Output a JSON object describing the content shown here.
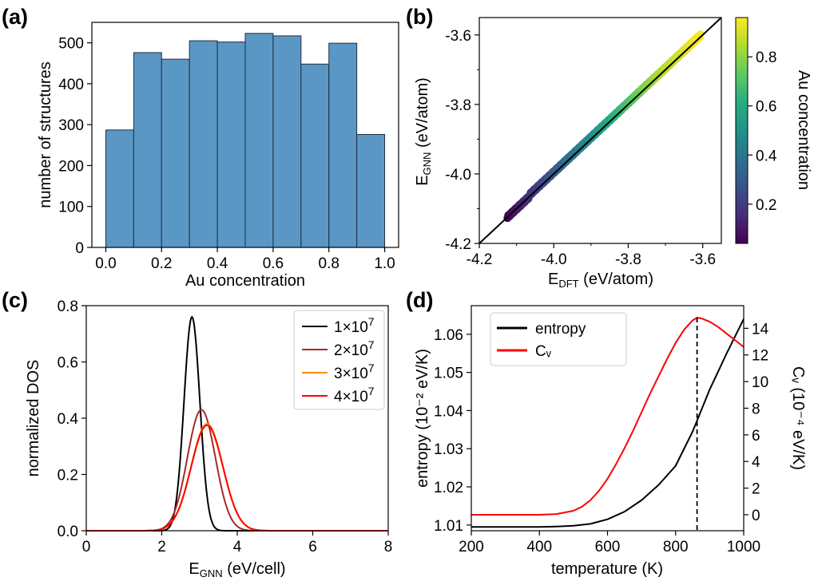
{
  "panels": {
    "a": "(a)",
    "b": "(b)",
    "c": "(c)",
    "d": "(d)"
  },
  "colors": {
    "bar_fill": "#5b97c4",
    "bar_edge": "#1f2f3f",
    "cv_line": "#ff0000",
    "entropy_line": "#000000",
    "dos_1e7": "#000000",
    "dos_2e7": "#a52a2a",
    "dos_3e7": "#ff8c00",
    "dos_4e7": "#ff0000"
  },
  "chart_data": [
    {
      "id": "a",
      "type": "bar",
      "title": "",
      "xlabel": "Au concentration",
      "ylabel": "number of structures",
      "bin_edges": [
        0.0,
        0.1,
        0.2,
        0.3,
        0.4,
        0.5,
        0.6,
        0.7,
        0.8,
        0.9,
        1.0
      ],
      "values": [
        287,
        476,
        460,
        505,
        502,
        523,
        517,
        448,
        499,
        276
      ],
      "xlim": [
        -0.05,
        1.05
      ],
      "ylim": [
        0,
        550
      ],
      "xticks": [
        0.0,
        0.2,
        0.4,
        0.6,
        0.8,
        1.0
      ],
      "xtick_labels": [
        "0.0",
        "0.2",
        "0.4",
        "0.6",
        "0.8",
        "1.0"
      ],
      "yticks": [
        0,
        100,
        200,
        300,
        400,
        500
      ],
      "ytick_labels": [
        "0",
        "100",
        "200",
        "300",
        "400",
        "500"
      ]
    },
    {
      "id": "b",
      "type": "scatter",
      "title": "",
      "xlabel_main": "E",
      "xlabel_sub": "DFT",
      "xlabel_rest": " (eV/atom)",
      "ylabel_main": "E",
      "ylabel_sub": "GNN",
      "ylabel_rest": " (eV/atom)",
      "xlim": [
        -4.2,
        -3.55
      ],
      "ylim": [
        -4.2,
        -3.55
      ],
      "xticks": [
        -4.2,
        -4.0,
        -3.8,
        -3.6
      ],
      "xtick_labels": [
        "-4.2",
        "-4.0",
        "-3.8",
        "-3.6"
      ],
      "yticks": [
        -4.2,
        -4.0,
        -3.8,
        -3.6
      ],
      "ytick_labels": [
        "-4.2",
        "-4.0",
        "-3.8",
        "-3.6"
      ],
      "points_x": [
        -4.12,
        -4.11,
        -4.1,
        -4.09,
        -4.08,
        -4.07,
        -4.06,
        -4.05,
        -4.04,
        -4.03,
        -4.02,
        -4.01,
        -4.0,
        -3.99,
        -3.98,
        -3.97,
        -3.96,
        -3.95,
        -3.94,
        -3.93,
        -3.92,
        -3.91,
        -3.9,
        -3.89,
        -3.88,
        -3.87,
        -3.86,
        -3.85,
        -3.84,
        -3.83,
        -3.82,
        -3.81,
        -3.8,
        -3.79,
        -3.78,
        -3.77,
        -3.76,
        -3.75,
        -3.74,
        -3.73,
        -3.72,
        -3.71,
        -3.7,
        -3.69,
        -3.68,
        -3.67,
        -3.66,
        -3.65,
        -3.64,
        -3.63,
        -3.62,
        -3.61
      ],
      "points_y": [
        -4.12,
        -4.11,
        -4.1,
        -4.09,
        -4.08,
        -4.07,
        -4.055,
        -4.045,
        -4.035,
        -4.025,
        -4.015,
        -4.005,
        -3.995,
        -3.985,
        -3.975,
        -3.965,
        -3.955,
        -3.945,
        -3.935,
        -3.925,
        -3.915,
        -3.905,
        -3.895,
        -3.885,
        -3.875,
        -3.865,
        -3.855,
        -3.845,
        -3.835,
        -3.825,
        -3.815,
        -3.805,
        -3.795,
        -3.785,
        -3.775,
        -3.765,
        -3.755,
        -3.745,
        -3.735,
        -3.725,
        -3.715,
        -3.705,
        -3.695,
        -3.685,
        -3.675,
        -3.665,
        -3.655,
        -3.645,
        -3.635,
        -3.625,
        -3.615,
        -3.605
      ],
      "points_c": [
        0.05,
        0.07,
        0.09,
        0.11,
        0.13,
        0.15,
        0.17,
        0.19,
        0.21,
        0.23,
        0.25,
        0.27,
        0.29,
        0.31,
        0.33,
        0.35,
        0.37,
        0.39,
        0.41,
        0.43,
        0.45,
        0.47,
        0.49,
        0.51,
        0.53,
        0.55,
        0.57,
        0.59,
        0.61,
        0.63,
        0.65,
        0.67,
        0.69,
        0.71,
        0.73,
        0.75,
        0.77,
        0.79,
        0.8,
        0.82,
        0.84,
        0.85,
        0.86,
        0.87,
        0.88,
        0.89,
        0.9,
        0.91,
        0.92,
        0.93,
        0.94,
        0.95
      ],
      "reference_line": [
        [
          -4.2,
          -4.2
        ],
        [
          -3.55,
          -3.55
        ]
      ],
      "colorbar": {
        "label": "Au concentration",
        "lim": [
          0.04,
          0.96
        ],
        "ticks": [
          0.2,
          0.4,
          0.6,
          0.8
        ],
        "tick_labels": [
          "0.2",
          "0.4",
          "0.6",
          "0.8"
        ],
        "colormap": "viridis"
      }
    },
    {
      "id": "c",
      "type": "line",
      "title": "",
      "xlabel_main": "E",
      "xlabel_sub": "GNN",
      "xlabel_rest": " (eV/cell)",
      "ylabel": "normalized DOS",
      "xlim": [
        0,
        8
      ],
      "ylim": [
        0,
        0.8
      ],
      "xticks": [
        0,
        2,
        4,
        6,
        8
      ],
      "xtick_labels": [
        "0",
        "2",
        "4",
        "6",
        "8"
      ],
      "yticks": [
        0.0,
        0.2,
        0.4,
        0.6,
        0.8
      ],
      "ytick_labels": [
        "0.0",
        "0.2",
        "0.4",
        "0.6",
        "0.8"
      ],
      "legend_position": "top-right",
      "series": [
        {
          "name_base": "1×10",
          "name_exp": "7",
          "peak_x": 2.8,
          "peak_y": 0.76,
          "sigma": 0.21
        },
        {
          "name_base": "2×10",
          "name_exp": "7",
          "peak_x": 3.05,
          "peak_y": 0.43,
          "sigma": 0.37
        },
        {
          "name_base": "3×10",
          "name_exp": "7",
          "peak_x": 3.2,
          "peak_y": 0.38,
          "sigma": 0.42
        },
        {
          "name_base": "4×10",
          "name_exp": "7",
          "peak_x": 3.2,
          "peak_y": 0.375,
          "sigma": 0.42
        }
      ]
    },
    {
      "id": "d",
      "type": "line",
      "title": "",
      "xlabel": "temperature (K)",
      "ylabel_left": "entropy (10⁻² eV/K)",
      "ylabel_right": "Cᵥ (10⁻⁴ eV/K)",
      "xlim": [
        200,
        1000
      ],
      "ylim_left": [
        1.0085,
        1.0675
      ],
      "ylim_right": [
        -1.2,
        15.7
      ],
      "xticks": [
        200,
        400,
        600,
        800,
        1000
      ],
      "xtick_labels": [
        "200",
        "400",
        "600",
        "800",
        "1000"
      ],
      "yticks_left": [
        1.01,
        1.02,
        1.03,
        1.04,
        1.05,
        1.06
      ],
      "ytick_labels_left": [
        "1.01",
        "1.02",
        "1.03",
        "1.04",
        "1.05",
        "1.06"
      ],
      "yticks_right": [
        0,
        2,
        4,
        6,
        8,
        10,
        12,
        14
      ],
      "ytick_labels_right": [
        "0",
        "2",
        "4",
        "6",
        "8",
        "10",
        "12",
        "14"
      ],
      "legend_position": "top-left",
      "vline_x": 863,
      "series": [
        {
          "name": "entropy",
          "axis": "left",
          "x": [
            200,
            300,
            400,
            450,
            500,
            550,
            600,
            650,
            700,
            750,
            800,
            850,
            900,
            950,
            1000
          ],
          "y": [
            1.0095,
            1.0095,
            1.0095,
            1.0096,
            1.0098,
            1.0103,
            1.0115,
            1.0135,
            1.0165,
            1.0205,
            1.0255,
            1.0345,
            1.0455,
            1.055,
            1.064
          ]
        },
        {
          "name": "Cᵥ",
          "axis": "right",
          "x": [
            200,
            400,
            450,
            500,
            525,
            550,
            575,
            600,
            625,
            650,
            675,
            700,
            725,
            750,
            775,
            800,
            825,
            850,
            863,
            875,
            900,
            925,
            950,
            975,
            1000
          ],
          "y": [
            0.0,
            0.0,
            0.05,
            0.3,
            0.6,
            1.1,
            1.8,
            2.7,
            3.8,
            5.0,
            6.3,
            7.7,
            9.1,
            10.4,
            11.7,
            12.9,
            13.9,
            14.6,
            14.8,
            14.75,
            14.5,
            14.1,
            13.6,
            13.1,
            12.6
          ]
        }
      ]
    }
  ]
}
